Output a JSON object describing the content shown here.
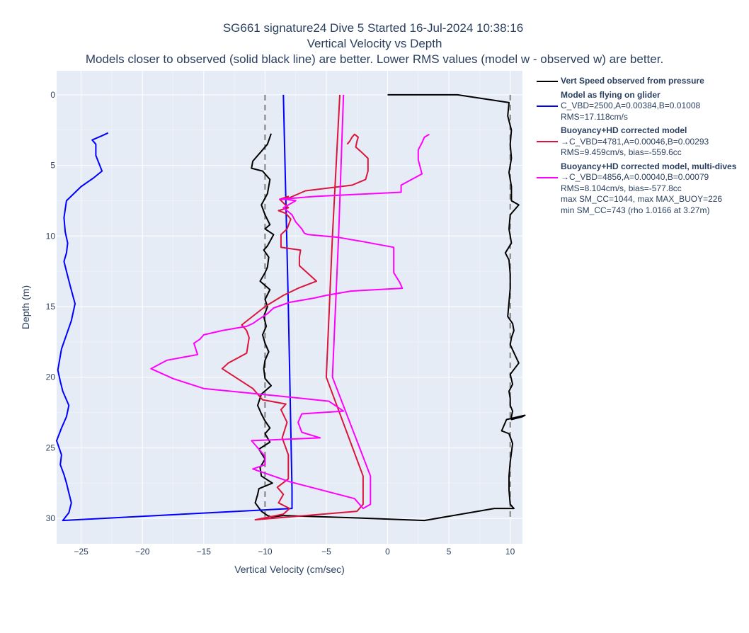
{
  "chart_data": {
    "type": "line",
    "title": "SG661 signature24 Dive 5 Started 16-Jul-2024 10:38:16",
    "subtitle": "Vertical Velocity vs Depth",
    "note": "Models closer to observed (solid black line) are better. Lower RMS values (model w - observed w) are better.",
    "xlabel": "Vertical Velocity (cm/sec)",
    "ylabel": "Depth (m)",
    "xlim": [
      -27,
      11
    ],
    "ylim": [
      31.8,
      -1.7
    ],
    "xticks": [
      -25,
      -20,
      -15,
      -10,
      -5,
      0,
      5,
      10
    ],
    "yticks": [
      0,
      5,
      10,
      15,
      20,
      25,
      30
    ],
    "grid": true,
    "legend_position": "right",
    "reference_lines": [
      {
        "x": -10,
        "style": "dashed",
        "color": "#7f7f7f"
      },
      {
        "x": 10,
        "style": "dashed",
        "color": "#7f7f7f"
      }
    ],
    "series": [
      {
        "name": "Vert Speed observed from pressure",
        "color": "#000000",
        "segments": [
          {
            "x": [
              -9.5,
              -9.8,
              -10.3,
              -11.0,
              -11.1,
              -10.2,
              -9.6,
              -9.8,
              -10.3,
              -10.0,
              -9.6,
              -10.0,
              -9.3,
              -9.8,
              -10.1,
              -9.7,
              -9.8,
              -10.0,
              -10.4,
              -9.6,
              -10.0,
              -9.8,
              -10.1,
              -9.9,
              -10.2,
              -10.0,
              -9.7,
              -10.0,
              -10.1,
              -10.0,
              -9.5,
              -10.3,
              -10.6,
              -10.3,
              -10.0,
              -9.6,
              -10.0,
              -9.6,
              -10.5,
              -10.0,
              -10.4,
              -10.3,
              -9.4,
              -10.5,
              -10.6,
              -10.8,
              -10.3,
              -9.8,
              -9.5,
              -8.5
            ],
            "y": [
              2.75,
              3.5,
              4.0,
              4.7,
              5.2,
              5.4,
              6.0,
              7.0,
              7.8,
              8.5,
              9.2,
              9.5,
              9.9,
              10.7,
              11.0,
              11.5,
              12.2,
              12.6,
              13.2,
              13.8,
              14.5,
              15.0,
              15.7,
              16.4,
              17.0,
              17.6,
              18.2,
              18.8,
              19.4,
              20.1,
              20.6,
              21.2,
              22.0,
              22.6,
              23.1,
              23.6,
              24.0,
              24.6,
              25.1,
              25.8,
              26.4,
              27.0,
              27.5,
              27.9,
              28.3,
              28.9,
              29.5,
              29.8,
              29.9,
              29.8
            ]
          },
          {
            "x": [
              0.0,
              5.7,
              9.9,
              9.8,
              10.1,
              10.0,
              10.1,
              9.9,
              10.1,
              10.1,
              10.7,
              10.0,
              9.9,
              10.1,
              9.6,
              9.9,
              10.0,
              10.0,
              9.9,
              9.8,
              10.2,
              10.3,
              10.1,
              10.0,
              10.7,
              10.0,
              10.2,
              9.9,
              10.0,
              10.0,
              10.2,
              10.1,
              10.1,
              11.0,
              11.2,
              9.7,
              9.3,
              9.9,
              10.2,
              10.0,
              9.9,
              9.9,
              10.0,
              10.3,
              8.7,
              3.0,
              -1.5,
              -8.5
            ],
            "y": [
              0.0,
              0.0,
              0.55,
              1.5,
              2.5,
              3.5,
              4.5,
              5.5,
              6.5,
              7.5,
              7.8,
              8.5,
              9.5,
              10.5,
              11.2,
              11.7,
              12.7,
              13.7,
              14.7,
              15.7,
              16.2,
              16.7,
              17.2,
              17.7,
              19.0,
              19.8,
              20.5,
              21.0,
              21.5,
              22.0,
              22.4,
              22.8,
              23.0,
              22.8,
              22.7,
              23.0,
              23.8,
              24.0,
              24.7,
              26.0,
              27.0,
              28.0,
              29.0,
              29.3,
              29.3,
              30.15,
              30.0,
              29.8
            ]
          }
        ]
      },
      {
        "name": "Model as flying on glider",
        "legend_lines": [
          "C_VBD=2500,A=0.00384,B=0.01008",
          "RMS=17.118cm/s"
        ],
        "color": "#0000ff",
        "segments": [
          {
            "x": [
              -8.5,
              -8.1,
              -7.8,
              -7.8,
              -26.5,
              -26.0,
              -25.8,
              -26.0,
              -26.2,
              -26.4,
              -26.7,
              -26.6,
              -27.0,
              -26.6,
              -26.2,
              -26.0,
              -26.5,
              -26.7,
              -26.9,
              -26.6,
              -25.8,
              -25.5,
              -25.9,
              -26.2,
              -26.4,
              -26.2,
              -26.1,
              -26.3,
              -26.4,
              -26.2,
              -25.0,
              -24.0,
              -23.3,
              -23.8,
              -23.8,
              -24.1,
              -23.3,
              -22.8
            ],
            "y": [
              0.0,
              15.0,
              28.0,
              29.3,
              30.15,
              29.6,
              28.9,
              28.2,
              27.5,
              26.9,
              26.2,
              25.5,
              24.5,
              23.6,
              22.8,
              22.0,
              21.0,
              20.3,
              19.5,
              18.0,
              16.0,
              14.8,
              13.5,
              12.5,
              11.8,
              11.2,
              10.5,
              9.7,
              8.7,
              7.5,
              6.5,
              5.9,
              5.4,
              4.3,
              3.5,
              3.2,
              2.9,
              2.7
            ]
          }
        ]
      },
      {
        "name": "Buoyancy+HD corrected model",
        "legend_lines": [
          "→C_VBD=4781,A=0.00046,B=0.00293",
          "RMS=9.459cm/s, bias=-559.6cc"
        ],
        "color": "#dc143c",
        "segments": [
          {
            "x": [
              -3.9,
              -4.5,
              -5.0,
              -2.0,
              -2.0,
              -2.5,
              -10.8,
              -8.5,
              -8.0,
              -8.9,
              -8.5,
              -9.0,
              -8.1,
              -8.1,
              -8.6,
              -8.2,
              -8.7,
              -8.3,
              -10.2,
              -11.0,
              -13.5,
              -13.0,
              -11.5,
              -11.3,
              -11.5,
              -11.9,
              -10.0,
              -8.5,
              -7.3,
              -5.8,
              -7.2,
              -7.2,
              -7.1,
              -8.7,
              -8.7,
              -8.7,
              -8.2,
              -7.9,
              -8.3,
              -8.9,
              -8.1,
              -8.8,
              -8.1,
              -8.3,
              -6.7,
              -2.9,
              -1.8,
              -1.6,
              -1.6,
              -2.2,
              -2.6,
              -2.5,
              -2.4,
              -2.7,
              -2.9,
              -3.1,
              -3.3
            ],
            "y": [
              0.0,
              10.0,
              20.0,
              27.0,
              29.0,
              29.5,
              30.1,
              29.7,
              29.3,
              28.9,
              28.3,
              27.8,
              27.2,
              25.5,
              24.3,
              23.2,
              22.3,
              21.9,
              21.6,
              20.8,
              19.4,
              19.0,
              18.3,
              17.2,
              16.7,
              16.3,
              15.0,
              14.2,
              13.7,
              13.2,
              12.1,
              11.5,
              11.0,
              10.8,
              10.5,
              9.9,
              9.5,
              8.8,
              8.4,
              8.2,
              8.0,
              7.4,
              7.2,
              7.4,
              6.8,
              6.4,
              6.0,
              5.4,
              4.5,
              4.0,
              3.7,
              3.3,
              3.0,
              2.8,
              3.0,
              3.3,
              3.5
            ]
          }
        ]
      },
      {
        "name": "Buoyancy+HD corrected model, multi-dives",
        "legend_lines": [
          "→C_VBD=4856,A=0.00040,B=0.00079",
          "RMS=8.104cm/s, bias=-577.8cc",
          "max SM_CC=1044, max MAX_BUOY=226",
          "min SM_CC=743 (rho 1.0166 at 3.27m)"
        ],
        "color": "#ff00ff",
        "segments": [
          {
            "x": [
              -3.6,
              -4.0,
              -4.5,
              -1.4,
              -1.4,
              -2.0,
              -2.7,
              -8.0,
              -11.0,
              -10.0,
              -10.0,
              -10.5,
              -11.1,
              -5.5,
              -7.0,
              -7.3,
              -7.0,
              -3.6,
              -4.8,
              -7.0,
              -15.0,
              -17.5,
              -19.3,
              -18.0,
              -15.5,
              -15.8,
              -15.3,
              -15.0,
              -13.5,
              -11.5,
              -11.0,
              -10.5,
              -9.8,
              -9.3,
              -8.0,
              -6.0,
              -5.0,
              -3.0,
              1.2,
              1.0,
              0.5,
              0.5,
              0.5,
              -2.0,
              -4.0,
              -6.5,
              -6.8,
              -7.0,
              -7.5,
              -7.8,
              -8.5,
              -7.5,
              -8.3,
              -8.8,
              -6.0,
              1.1,
              1.1,
              2.8,
              2.5,
              2.5,
              2.8,
              3.0,
              3.4
            ],
            "y": [
              0.0,
              10.0,
              20.0,
              27.0,
              29.0,
              29.3,
              28.6,
              27.4,
              26.5,
              26.2,
              25.6,
              25.1,
              24.5,
              24.3,
              23.9,
              23.2,
              22.6,
              22.4,
              21.7,
              21.5,
              20.8,
              20.1,
              19.4,
              18.8,
              18.4,
              17.6,
              17.3,
              17.0,
              16.7,
              16.4,
              16.2,
              15.9,
              15.5,
              15.1,
              14.7,
              14.4,
              14.2,
              13.9,
              13.7,
              13.3,
              12.6,
              11.8,
              10.8,
              10.4,
              10.1,
              9.9,
              9.8,
              9.5,
              9.0,
              8.5,
              8.0,
              7.5,
              7.4,
              7.4,
              7.2,
              6.9,
              6.4,
              5.6,
              4.6,
              3.9,
              3.4,
              3.0,
              2.8
            ]
          }
        ]
      }
    ]
  }
}
